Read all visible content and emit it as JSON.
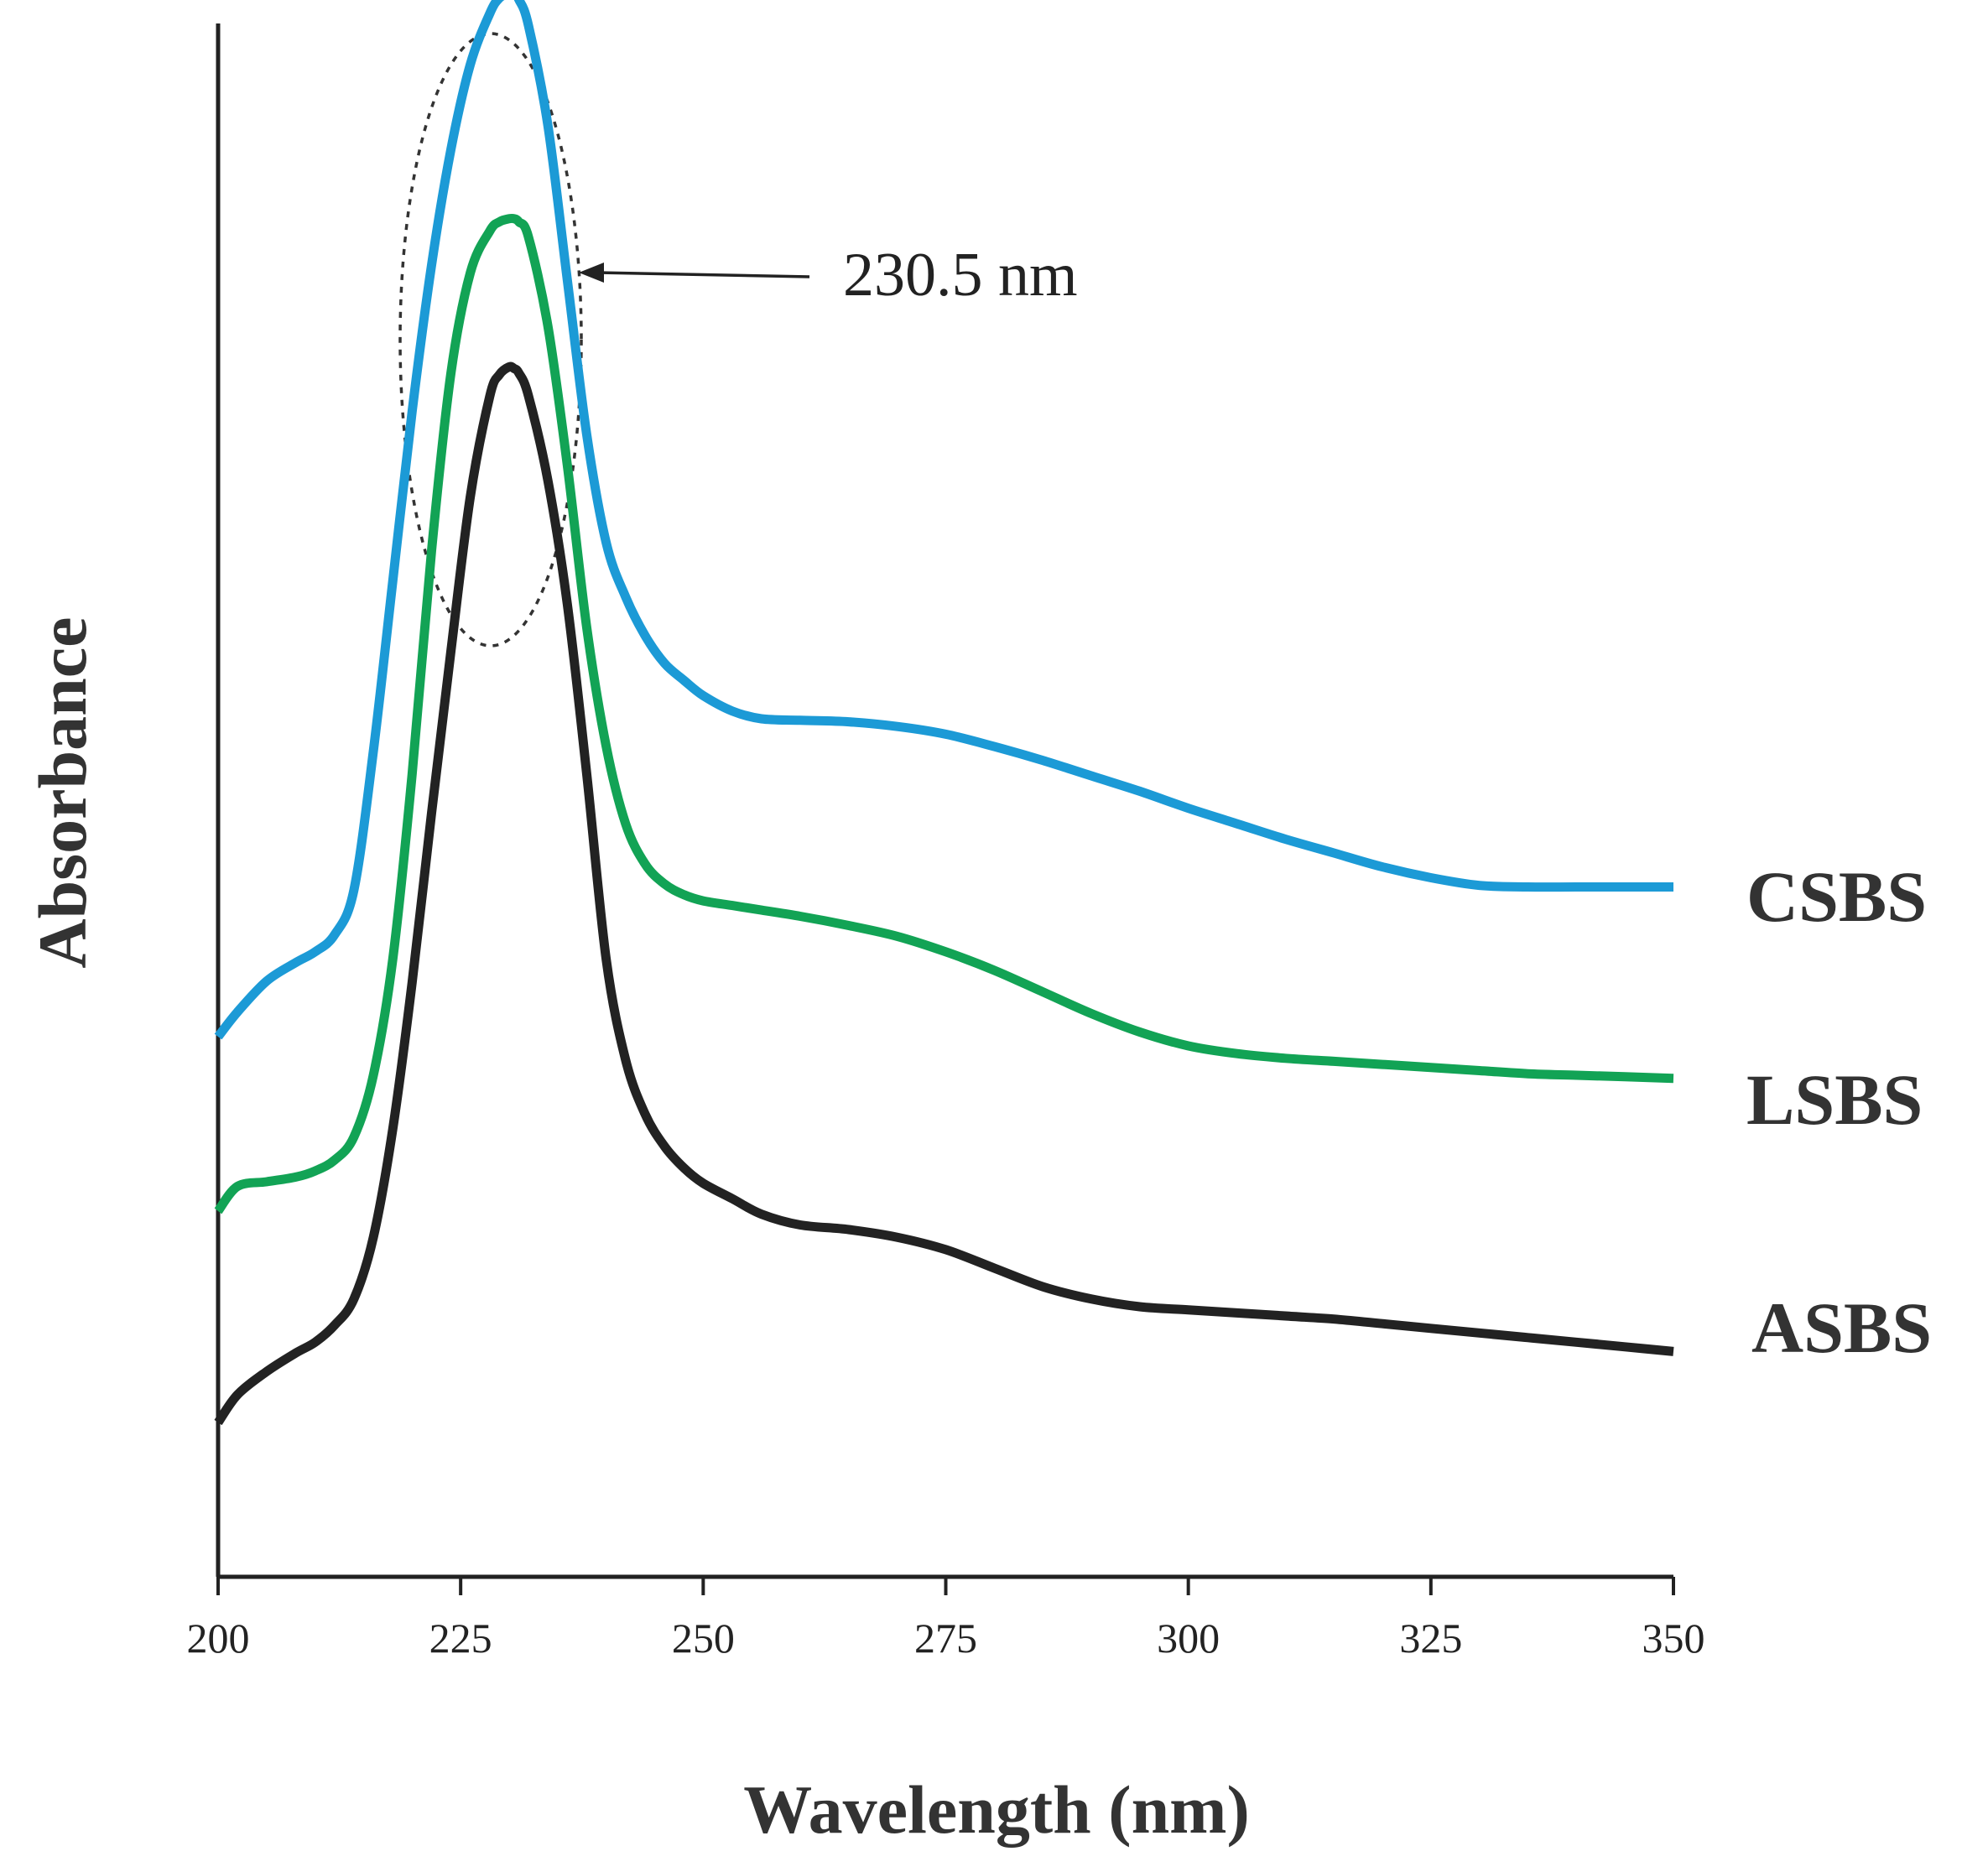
{
  "chart_data": {
    "type": "line",
    "title": "",
    "xlabel": "Wavelength (nm)",
    "ylabel": "Absorbance",
    "xlim": [
      200,
      350
    ],
    "ylim": [
      0,
      100
    ],
    "xticks": [
      200,
      225,
      250,
      275,
      300,
      325,
      350
    ],
    "yticks_shown": false,
    "grid": false,
    "legend": "labels at right end of each curve",
    "x": [
      200,
      202,
      205,
      208,
      210,
      212,
      214,
      216,
      218,
      220,
      222,
      224,
      226,
      228,
      229,
      230,
      230.5,
      231,
      232,
      234,
      236,
      238,
      240,
      242,
      244,
      246,
      248,
      250,
      253,
      256,
      260,
      265,
      270,
      275,
      280,
      285,
      290,
      295,
      300,
      305,
      310,
      315,
      320,
      325,
      330,
      335,
      340,
      345,
      350
    ],
    "series": [
      {
        "name": "CSBS",
        "color": "#1c9ad6",
        "values": [
          35.0,
          36.6,
          38.6,
          39.8,
          40.5,
          41.6,
          44.5,
          53.5,
          64.5,
          75.5,
          85.0,
          92.5,
          98.0,
          101.3,
          102.3,
          102.6,
          102.6,
          102.2,
          100.5,
          94.0,
          84.0,
          74.0,
          67.0,
          63.5,
          61.0,
          59.2,
          58.1,
          57.1,
          56.1,
          55.6,
          55.5,
          55.4,
          55.1,
          54.6,
          53.8,
          52.9,
          51.9,
          50.9,
          49.8,
          48.8,
          47.8,
          46.9,
          46.0,
          45.3,
          44.8,
          44.7,
          44.7,
          44.7,
          44.7
        ]
      },
      {
        "name": "LSBS",
        "color": "#12a355",
        "values": [
          23.7,
          25.3,
          25.6,
          25.9,
          26.3,
          27.0,
          28.5,
          32.5,
          40.0,
          52.0,
          66.5,
          78.0,
          84.5,
          87.2,
          87.8,
          88.0,
          88.0,
          87.8,
          86.8,
          81.0,
          72.0,
          61.5,
          53.8,
          48.8,
          46.2,
          44.9,
          44.2,
          43.8,
          43.5,
          43.2,
          42.8,
          42.2,
          41.5,
          40.5,
          39.3,
          37.9,
          36.5,
          35.3,
          34.4,
          33.9,
          33.6,
          33.4,
          33.2,
          33.0,
          32.8,
          32.6,
          32.5,
          32.4,
          32.3
        ]
      },
      {
        "name": "ASBS",
        "color": "#222222",
        "values": [
          10.0,
          11.8,
          13.3,
          14.5,
          15.2,
          16.3,
          18.0,
          22.0,
          29.0,
          38.5,
          49.5,
          60.0,
          70.0,
          76.5,
          77.9,
          78.4,
          78.3,
          78.0,
          76.5,
          71.0,
          63.0,
          52.0,
          40.0,
          33.5,
          30.0,
          27.9,
          26.5,
          25.5,
          24.5,
          23.5,
          22.8,
          22.5,
          22.0,
          21.2,
          20.0,
          18.8,
          18.0,
          17.5,
          17.3,
          17.1,
          16.9,
          16.7,
          16.4,
          16.1,
          15.8,
          15.5,
          15.2,
          14.9,
          14.6
        ]
      }
    ],
    "annotations": [
      {
        "text": "230.5 nm",
        "target_x": 230.5,
        "kind": "dashed ellipse around peaks with arrow"
      }
    ]
  }
}
